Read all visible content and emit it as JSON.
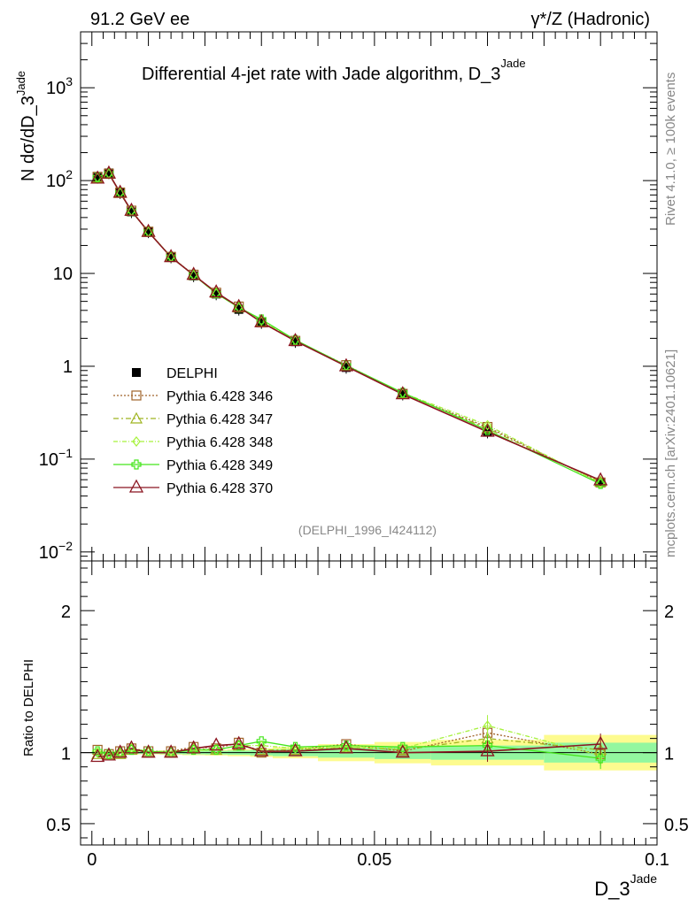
{
  "header": {
    "left": "91.2 GeV ee",
    "right": "γ*/Z (Hadronic)"
  },
  "side_text": {
    "rivet": "Rivet 4.1.0, ≥ 100k events",
    "mcplots": "mcplots.cern.ch [arXiv:2401.10621]"
  },
  "colors": {
    "data": "#000000",
    "p346": "#a0632a",
    "p347": "#9fb521",
    "p348": "#a6f23c",
    "p349": "#45e51c",
    "p370": "#8b1520",
    "band_yellow": "#fdfb8f",
    "band_green": "#93f79f"
  },
  "chart_data": [
    {
      "type": "line",
      "title": "Differential 4-jet rate with Jade algorithm, D_3",
      "title_sup": "Jade",
      "ylabel_main": "N  dσ/dD_3",
      "ylabel_sup": "Jade",
      "yscale": "log",
      "ylim": [
        0.008,
        4000
      ],
      "xlim": [
        -0.002,
        0.1
      ],
      "yticks": [
        {
          "label": "10",
          "sup": "−2",
          "value": 0.01
        },
        {
          "label": "10",
          "sup": "−1",
          "value": 0.1
        },
        {
          "label": "1",
          "sup": "",
          "value": 1
        },
        {
          "label": "10",
          "sup": "",
          "value": 10
        },
        {
          "label": "10",
          "sup": "2",
          "value": 100
        },
        {
          "label": "10",
          "sup": "3",
          "value": 1000
        }
      ],
      "watermark": "(DELPHI_1996_I424112)",
      "x": [
        0.001,
        0.003,
        0.005,
        0.007,
        0.01,
        0.014,
        0.018,
        0.022,
        0.026,
        0.03,
        0.036,
        0.045,
        0.055,
        0.07,
        0.09
      ],
      "series": [
        {
          "name": "DELPHI",
          "key": "data",
          "values": [
            108,
            121,
            74,
            46,
            28,
            15,
            9.4,
            6.0,
            4.1,
            2.95,
            1.84,
            0.97,
            0.5,
            0.195,
            0.056
          ]
        },
        {
          "name": "Pythia 6.428 346",
          "key": "p346",
          "values": [
            110,
            119,
            74.5,
            47.5,
            28.2,
            15.1,
            9.7,
            6.2,
            4.4,
            2.97,
            1.88,
            1.03,
            0.505,
            0.222,
            0.056
          ]
        },
        {
          "name": "Pythia 6.428 347",
          "key": "p347",
          "values": [
            107,
            118,
            73.5,
            47.0,
            28.0,
            15.0,
            9.6,
            6.15,
            4.3,
            3.02,
            1.88,
            1.01,
            0.51,
            0.214,
            0.057
          ]
        },
        {
          "name": "Pythia 6.428 348",
          "key": "p348",
          "values": [
            107.5,
            119.5,
            74,
            47.2,
            28.1,
            15.1,
            9.6,
            6.1,
            4.3,
            3.1,
            1.9,
            1.01,
            0.515,
            0.232,
            0.055
          ]
        },
        {
          "name": "Pythia 6.428 349",
          "key": "p349",
          "values": [
            108.5,
            119,
            73.8,
            47.0,
            28.1,
            15.05,
            9.6,
            6.1,
            4.3,
            3.2,
            1.92,
            1.02,
            0.52,
            0.205,
            0.054
          ]
        },
        {
          "name": "Pythia 6.428 370",
          "key": "p370",
          "values": [
            105,
            119,
            74,
            47.3,
            28.0,
            15.0,
            9.65,
            6.25,
            4.35,
            2.98,
            1.87,
            1.0,
            0.5,
            0.197,
            0.059
          ]
        }
      ]
    },
    {
      "type": "line",
      "ylabel": "Ratio to DELPHI",
      "xlabel": "D_3",
      "xlabel_sup": "Jade",
      "ylim": [
        0.35,
        2.35
      ],
      "xlim": [
        -0.002,
        0.1
      ],
      "yticks": [
        {
          "label": "0.5",
          "value": 0.5
        },
        {
          "label": "1",
          "value": 1
        },
        {
          "label": "2",
          "value": 2
        }
      ],
      "xticks": [
        {
          "label": "0",
          "value": 0
        },
        {
          "label": "0.05",
          "value": 0.05
        },
        {
          "label": "0.1",
          "value": 0.1
        }
      ],
      "x": [
        0.001,
        0.003,
        0.005,
        0.007,
        0.01,
        0.014,
        0.018,
        0.022,
        0.026,
        0.03,
        0.036,
        0.045,
        0.055,
        0.07,
        0.09
      ],
      "bin_edges": [
        0,
        0.002,
        0.004,
        0.006,
        0.008,
        0.012,
        0.016,
        0.02,
        0.024,
        0.028,
        0.032,
        0.04,
        0.05,
        0.06,
        0.08,
        0.1
      ],
      "band_yellow": [
        0.015,
        0.012,
        0.012,
        0.012,
        0.012,
        0.015,
        0.018,
        0.02,
        0.025,
        0.03,
        0.04,
        0.06,
        0.075,
        0.09,
        0.125
      ],
      "band_green": [
        0.01,
        0.008,
        0.008,
        0.008,
        0.008,
        0.01,
        0.012,
        0.013,
        0.015,
        0.02,
        0.025,
        0.035,
        0.045,
        0.05,
        0.07
      ],
      "series": [
        {
          "name": "Pythia 6.428 346",
          "key": "p346",
          "values": [
            1.02,
            0.99,
            1.01,
            1.03,
            1.01,
            1.01,
            1.04,
            1.03,
            1.07,
            1.0,
            1.02,
            1.06,
            1.01,
            1.14,
            0.99
          ]
        },
        {
          "name": "Pythia 6.428 347",
          "key": "p347",
          "values": [
            0.99,
            0.98,
            0.99,
            1.02,
            1.0,
            1.0,
            1.03,
            1.02,
            1.05,
            1.02,
            1.02,
            1.04,
            1.02,
            1.1,
            1.02
          ]
        },
        {
          "name": "Pythia 6.428 348",
          "key": "p348",
          "values": [
            1.0,
            0.99,
            1.0,
            1.03,
            1.01,
            1.01,
            1.02,
            1.02,
            1.05,
            1.05,
            1.03,
            1.04,
            1.03,
            1.19,
            0.98
          ]
        },
        {
          "name": "Pythia 6.428 349",
          "key": "p349",
          "values": [
            1.01,
            0.99,
            1.0,
            1.02,
            1.01,
            1.0,
            1.02,
            1.02,
            1.05,
            1.08,
            1.04,
            1.05,
            1.04,
            1.05,
            0.96
          ]
        },
        {
          "name": "Pythia 6.428 370",
          "key": "p370",
          "values": [
            0.97,
            0.98,
            1.0,
            1.03,
            1.0,
            1.0,
            1.03,
            1.05,
            1.06,
            1.01,
            1.01,
            1.03,
            1.0,
            1.01,
            1.06
          ]
        }
      ]
    }
  ]
}
